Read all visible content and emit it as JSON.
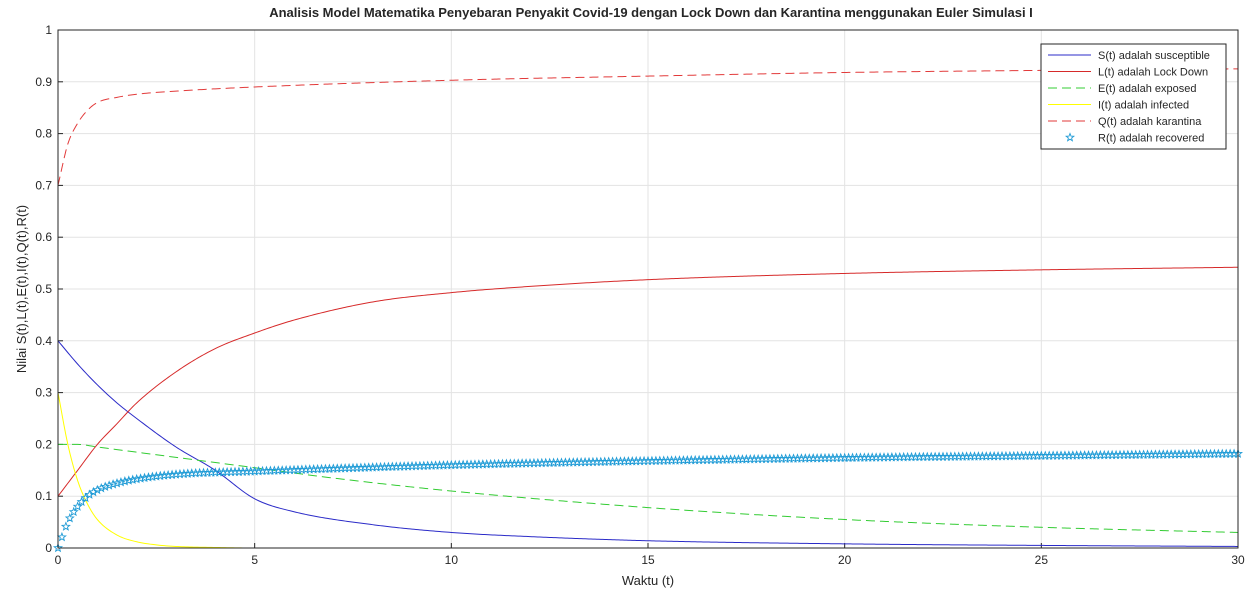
{
  "chart_data": {
    "type": "line",
    "title": "Analisis Model Matematika Penyebaran Penyakit Covid-19 dengan Lock Down dan Karantina menggunakan Euler Simulasi I",
    "xlabel": "Waktu (t)",
    "ylabel": "Nilai S(t),L(t),E(t),I(t),Q(t),R(t)",
    "xlim": [
      0,
      30
    ],
    "ylim": [
      0,
      1
    ],
    "xticks": [
      "0",
      "5",
      "10",
      "15",
      "20",
      "25",
      "30"
    ],
    "yticks": [
      "0",
      "0.1",
      "0.2",
      "0.3",
      "0.4",
      "0.5",
      "0.6",
      "0.7",
      "0.8",
      "0.9",
      "1"
    ],
    "grid": true,
    "legend_position": "top-right",
    "series": [
      {
        "name": "S(t) adalah susceptible",
        "color": "#2b2bc8",
        "style": "solid",
        "x": [
          0,
          0.5,
          1,
          1.5,
          2,
          3,
          4,
          5,
          6,
          8,
          10,
          12,
          15,
          20,
          25,
          30
        ],
        "y": [
          0.4,
          0.355,
          0.315,
          0.28,
          0.25,
          0.195,
          0.15,
          0.095,
          0.07,
          0.045,
          0.03,
          0.022,
          0.014,
          0.008,
          0.005,
          0.003
        ]
      },
      {
        "name": "L(t) adalah Lock Down",
        "color": "#d62a2a",
        "style": "solid",
        "x": [
          0,
          0.5,
          1,
          1.5,
          2,
          3,
          4,
          5,
          6,
          8,
          10,
          12,
          15,
          20,
          25,
          30
        ],
        "y": [
          0.1,
          0.15,
          0.2,
          0.24,
          0.28,
          0.34,
          0.385,
          0.415,
          0.44,
          0.475,
          0.493,
          0.505,
          0.518,
          0.53,
          0.537,
          0.542
        ]
      },
      {
        "name": "E(t) adalah exposed",
        "color": "#33cc33",
        "style": "dashed",
        "x": [
          0,
          0.5,
          1,
          2,
          3,
          5,
          7,
          10,
          15,
          20,
          25,
          30
        ],
        "y": [
          0.2,
          0.2,
          0.195,
          0.185,
          0.175,
          0.155,
          0.135,
          0.11,
          0.078,
          0.055,
          0.04,
          0.03
        ]
      },
      {
        "name": "I(t) adalah infected",
        "color": "#ffff00",
        "style": "solid",
        "x": [
          0,
          0.25,
          0.5,
          0.75,
          1,
          1.5,
          2,
          2.5,
          3,
          4,
          5,
          10,
          30
        ],
        "y": [
          0.3,
          0.2,
          0.13,
          0.085,
          0.055,
          0.025,
          0.012,
          0.006,
          0.003,
          0.001,
          0.0,
          0.0,
          0.0
        ]
      },
      {
        "name": "Q(t) adalah karantina",
        "color": "#e23a3a",
        "style": "dashed",
        "x": [
          0,
          0.25,
          0.5,
          0.75,
          1,
          1.5,
          2,
          3,
          5,
          10,
          15,
          20,
          25,
          30
        ],
        "y": [
          0.7,
          0.78,
          0.82,
          0.845,
          0.86,
          0.87,
          0.876,
          0.882,
          0.89,
          0.903,
          0.911,
          0.918,
          0.922,
          0.925
        ]
      },
      {
        "name": "R(t) adalah recovered",
        "color": "#1f9bd6",
        "style": "marker-star",
        "x": [
          0,
          0.25,
          0.5,
          0.75,
          1,
          1.5,
          2,
          3,
          5,
          10,
          15,
          20,
          25,
          30
        ],
        "y": [
          0.0,
          0.05,
          0.08,
          0.1,
          0.112,
          0.125,
          0.133,
          0.142,
          0.148,
          0.16,
          0.168,
          0.174,
          0.178,
          0.182
        ]
      }
    ]
  }
}
